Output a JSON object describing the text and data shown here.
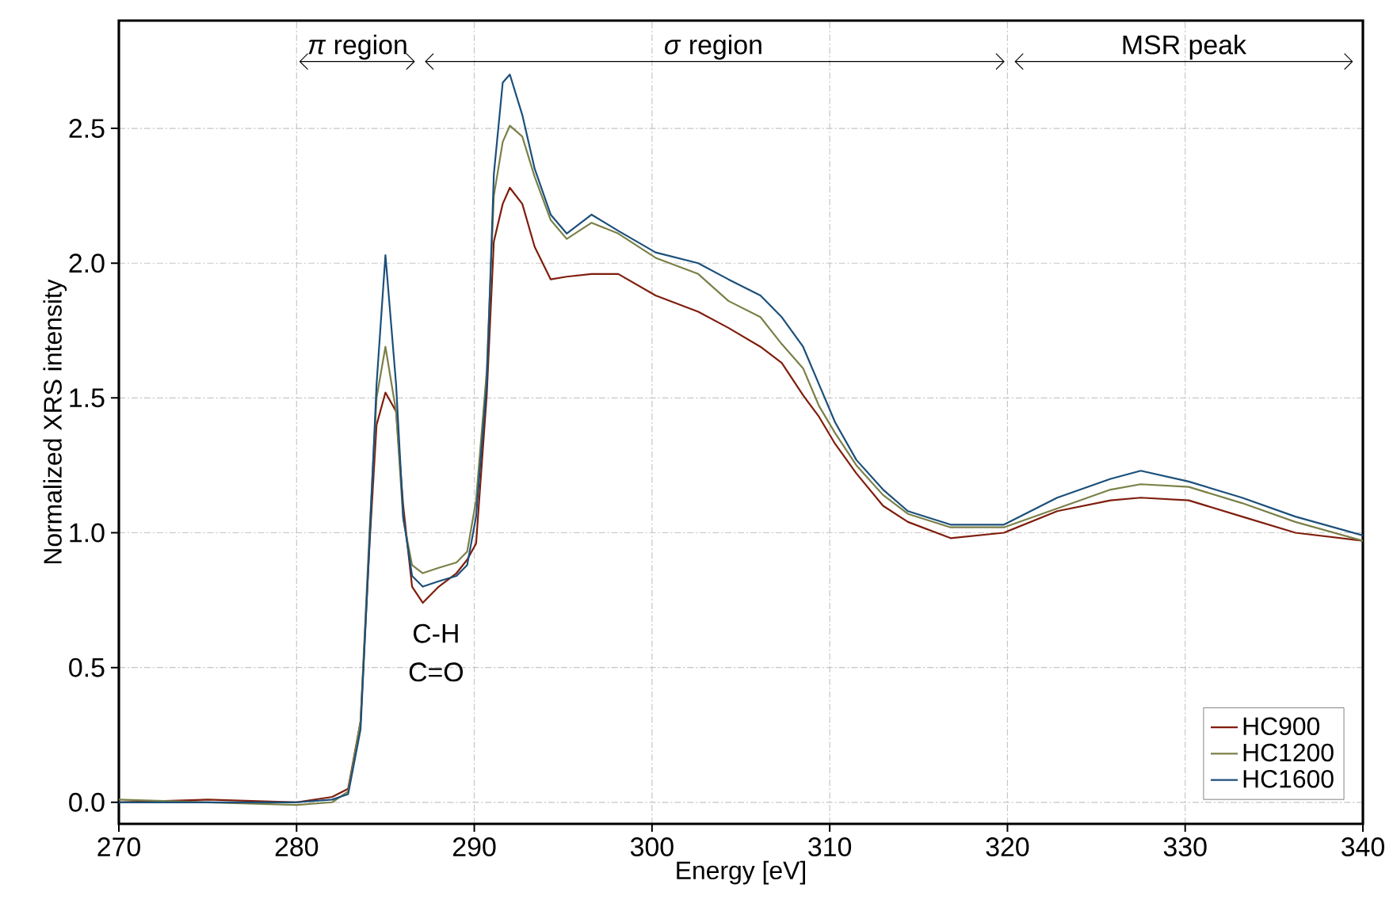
{
  "chart_data": {
    "type": "line",
    "xlabel": "Energy [eV]",
    "ylabel": "Normalized XRS intensity",
    "x": [
      270,
      275,
      280,
      282,
      282.9,
      283.6,
      284.1,
      284.5,
      285.0,
      285.6,
      286.0,
      286.5,
      287.1,
      288.0,
      289.0,
      289.6,
      290.1,
      290.7,
      291.1,
      291.6,
      292.0,
      292.7,
      293.4,
      294.3,
      295.2,
      296.6,
      298.1,
      300.2,
      302.6,
      304.3,
      306.1,
      307.3,
      308.5,
      309.4,
      310.3,
      311.5,
      313.0,
      314.4,
      316.8,
      319.8,
      322.8,
      325.8,
      327.5,
      330.2,
      333.2,
      336.2,
      340
    ],
    "series": [
      {
        "name": "HC900",
        "color": "#7f1d0c",
        "values": [
          0.0,
          0.01,
          0.0,
          0.02,
          0.05,
          0.3,
          0.95,
          1.4,
          1.52,
          1.45,
          1.1,
          0.8,
          0.74,
          0.8,
          0.85,
          0.9,
          0.96,
          1.51,
          2.08,
          2.22,
          2.28,
          2.22,
          2.06,
          1.94,
          1.95,
          1.96,
          1.96,
          1.88,
          1.82,
          1.76,
          1.69,
          1.63,
          1.51,
          1.43,
          1.33,
          1.22,
          1.1,
          1.04,
          0.98,
          1.0,
          1.08,
          1.12,
          1.13,
          1.12,
          1.06,
          1.0,
          0.97
        ]
      },
      {
        "name": "HC1200",
        "color": "#7b8048",
        "values": [
          0.01,
          0.0,
          -0.01,
          0.0,
          0.04,
          0.3,
          1.0,
          1.5,
          1.69,
          1.45,
          1.05,
          0.88,
          0.85,
          0.87,
          0.89,
          0.93,
          1.12,
          1.6,
          2.25,
          2.45,
          2.51,
          2.47,
          2.32,
          2.16,
          2.09,
          2.15,
          2.11,
          2.02,
          1.96,
          1.86,
          1.8,
          1.7,
          1.61,
          1.47,
          1.37,
          1.25,
          1.14,
          1.07,
          1.02,
          1.02,
          1.09,
          1.16,
          1.18,
          1.17,
          1.11,
          1.04,
          0.97
        ]
      },
      {
        "name": "HC1600",
        "color": "#1b4f7a",
        "values": [
          0.0,
          0.0,
          0.0,
          0.01,
          0.03,
          0.27,
          0.96,
          1.55,
          2.03,
          1.55,
          1.06,
          0.84,
          0.8,
          0.82,
          0.84,
          0.88,
          1.06,
          1.55,
          2.33,
          2.67,
          2.7,
          2.55,
          2.35,
          2.18,
          2.11,
          2.18,
          2.12,
          2.04,
          2.0,
          1.94,
          1.88,
          1.8,
          1.69,
          1.55,
          1.41,
          1.27,
          1.16,
          1.08,
          1.03,
          1.03,
          1.13,
          1.2,
          1.23,
          1.19,
          1.13,
          1.06,
          0.99
        ]
      }
    ],
    "xlim": [
      270,
      340
    ],
    "ylim": [
      -0.08,
      2.9
    ],
    "xticks": [
      270,
      280,
      290,
      300,
      310,
      320,
      330,
      340
    ],
    "yticks": [
      {
        "value": 0,
        "label": "0.0"
      },
      {
        "value": 0.5,
        "label": "0.5"
      },
      {
        "value": 1,
        "label": "1.0"
      },
      {
        "value": 1.5,
        "label": "1.5"
      },
      {
        "value": 2,
        "label": "2.0"
      },
      {
        "value": 2.5,
        "label": "2.5"
      }
    ],
    "annotations": [
      "*π* region",
      "*σ* region",
      "MSR peak",
      "C-H",
      "C=O"
    ],
    "grid": true,
    "legend": "bottom right",
    "marker": "none",
    "line_style": "solid"
  }
}
